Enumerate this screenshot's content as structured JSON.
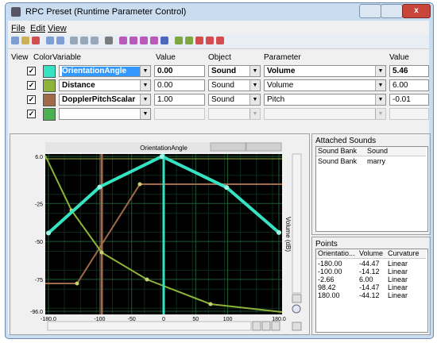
{
  "window": {
    "title": "RPC Preset (Runtime Parameter Control)"
  },
  "menu": [
    "File",
    "Edit",
    "View"
  ],
  "table": {
    "headers": [
      "View",
      "Color",
      "Variable",
      "Value",
      "Object",
      "Parameter",
      "Value"
    ],
    "rows": [
      {
        "color": "#35e3c3",
        "variable": "OrientationAngle",
        "value": "0.00",
        "object": "Sound",
        "parameter": "Volume",
        "result": "5.46"
      },
      {
        "color": "#8db33a",
        "variable": "Distance",
        "value": "0.00",
        "object": "Sound",
        "parameter": "Volume",
        "result": "6.00"
      },
      {
        "color": "#a0694a",
        "variable": "DopplerPitchScalar",
        "value": "1.00",
        "object": "Sound",
        "parameter": "Pitch",
        "result": "-0.01"
      },
      {
        "color": "#4caf50"
      }
    ]
  },
  "graph": {
    "title": "OrientationAngle",
    "y_label": "Volume (dB)",
    "xticks": [
      "-180.0",
      "-100",
      "-50",
      "0",
      "50",
      "100",
      "180.0"
    ],
    "yticks": [
      "6.0",
      "-25",
      "-50",
      "-75",
      "-96.0"
    ]
  },
  "attached_sounds": {
    "title": "Attached Sounds",
    "headers": [
      "Sound Bank",
      "Sound"
    ],
    "rows": [
      [
        "Sound Bank",
        "marry"
      ]
    ]
  },
  "points": {
    "title": "Points",
    "headers": [
      "Orientatio...",
      "Volume",
      "Curvature"
    ],
    "rows": [
      [
        "-180.00",
        "-44.47",
        "Linear"
      ],
      [
        "-100.00",
        "-14.12",
        "Linear"
      ],
      [
        "-2.66",
        "6.00",
        "Linear"
      ],
      [
        "98.42",
        "-14.47",
        "Linear"
      ],
      [
        "180.00",
        "-44.12",
        "Linear"
      ]
    ]
  }
}
